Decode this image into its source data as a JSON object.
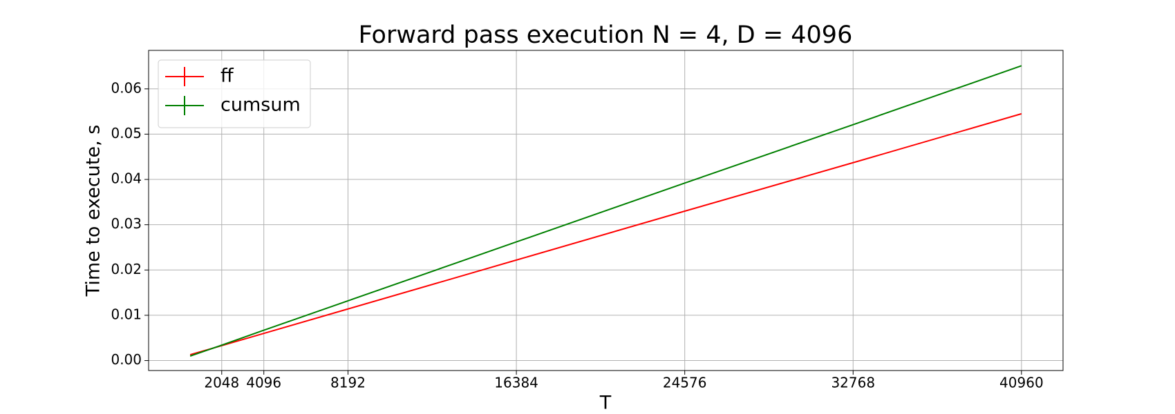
{
  "chart_data": {
    "type": "line",
    "title": "Forward pass execution N = 4, D = 4096",
    "x_label": "T",
    "y_label": "Time to execute, s",
    "x": [
      512,
      2048,
      4096,
      8192,
      16384,
      24576,
      32768,
      40960
    ],
    "series": [
      {
        "name": "ff",
        "color": "#ff0000",
        "values": [
          0.0013,
          0.0033,
          0.006,
          0.0114,
          0.0222,
          0.033,
          0.0437,
          0.0545
        ]
      },
      {
        "name": "cumsum",
        "color": "#008000",
        "values": [
          0.001,
          0.0034,
          0.0067,
          0.0132,
          0.0262,
          0.0392,
          0.0521,
          0.0651
        ]
      }
    ],
    "xlim": [
      -1510,
      42982
    ],
    "xticks": [
      2048,
      4096,
      8192,
      16384,
      24576,
      32768,
      40960
    ],
    "ylim": [
      -0.0022,
      0.0685
    ],
    "yticks": [
      {
        "value": 0,
        "label": "0.00"
      },
      {
        "value": 0.01,
        "label": "0.01"
      },
      {
        "value": 0.02,
        "label": "0.02"
      },
      {
        "value": 0.03,
        "label": "0.03"
      },
      {
        "value": 0.04,
        "label": "0.04"
      },
      {
        "value": 0.05,
        "label": "0.05"
      },
      {
        "value": 0.06,
        "label": "0.06"
      }
    ],
    "grid": true,
    "legend": "upper left"
  }
}
